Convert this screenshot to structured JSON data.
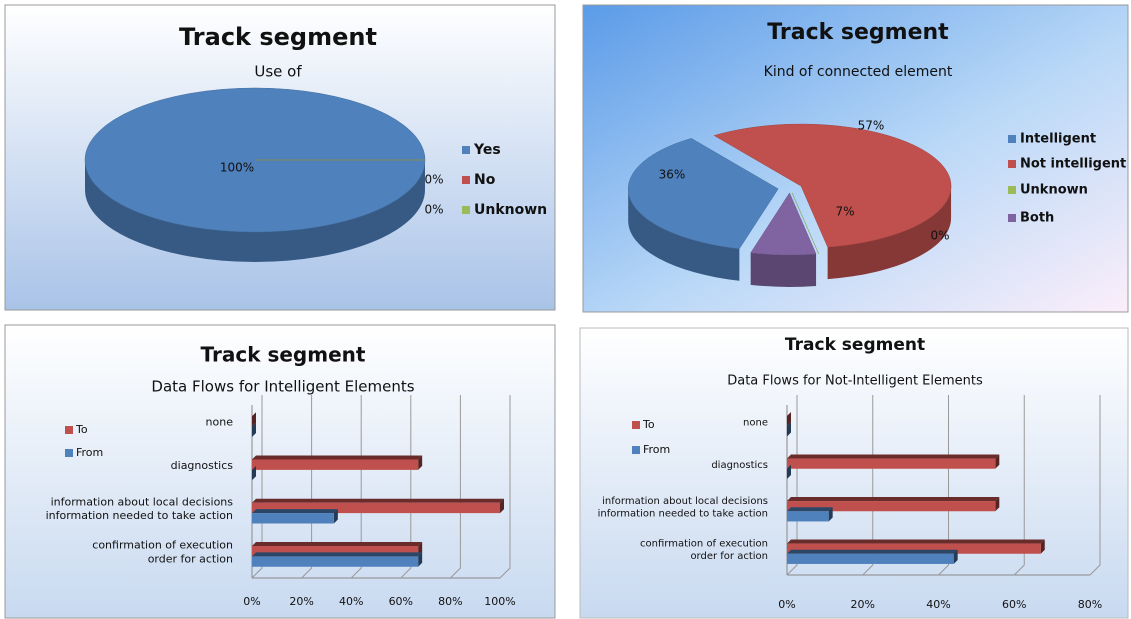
{
  "chart_data": [
    {
      "type": "pie",
      "title": "Track segment",
      "subtitle": "Use of",
      "categories": [
        "Yes",
        "No",
        "Unknown"
      ],
      "values": [
        100,
        0,
        0
      ],
      "value_labels": [
        "100%",
        "0%",
        "0%"
      ],
      "colors": [
        "#4f81bd",
        "#c0504d",
        "#9bbb59"
      ],
      "legend": "right"
    },
    {
      "type": "pie",
      "title": "Track segment",
      "subtitle": "Kind of connected element",
      "categories": [
        "Intelligent",
        "Not intelligent",
        "Unknown",
        "Both"
      ],
      "values": [
        36,
        57,
        0,
        7
      ],
      "value_labels": [
        "36%",
        "57%",
        "0%",
        "7%"
      ],
      "colors": [
        "#4f81bd",
        "#c0504d",
        "#9bbb59",
        "#8064a2"
      ],
      "legend": "right"
    },
    {
      "type": "hbar",
      "title": "Track segment",
      "subtitle": "Data Flows for Intelligent Elements",
      "categories": [
        "confirmation of execution\norder for action",
        "information about local decisions\ninformation needed to take action",
        "diagnostics",
        "none"
      ],
      "series": [
        {
          "name": "To",
          "color": "#c0504d",
          "values": [
            67,
            100,
            67,
            0
          ]
        },
        {
          "name": "From",
          "color": "#4f81bd",
          "values": [
            67,
            33,
            0,
            0
          ]
        }
      ],
      "xlim": [
        0,
        100
      ],
      "xticks": [
        {
          "value": 0,
          "label": "0%"
        },
        {
          "value": 20,
          "label": "20%"
        },
        {
          "value": 40,
          "label": "40%"
        },
        {
          "value": 60,
          "label": "60%"
        },
        {
          "value": 80,
          "label": "80%"
        },
        {
          "value": 100,
          "label": "100%"
        }
      ],
      "grid": true,
      "legend": "upper left"
    },
    {
      "type": "hbar",
      "title": "Track segment",
      "subtitle": "Data Flows for Not-Intelligent Elements",
      "categories": [
        "confirmation of execution\norder for action",
        "information about local decisions\ninformation needed to take action",
        "diagnostics",
        "none"
      ],
      "series": [
        {
          "name": "To",
          "color": "#c0504d",
          "values": [
            67,
            55,
            55,
            0
          ]
        },
        {
          "name": "From",
          "color": "#4f81bd",
          "values": [
            44,
            11,
            0,
            0
          ]
        }
      ],
      "xlim": [
        0,
        80
      ],
      "xticks": [
        {
          "value": 0,
          "label": "0%"
        },
        {
          "value": 20,
          "label": "20%"
        },
        {
          "value": 40,
          "label": "40%"
        },
        {
          "value": 60,
          "label": "60%"
        },
        {
          "value": 80,
          "label": "80%"
        }
      ],
      "grid": true,
      "legend": "upper left"
    }
  ]
}
